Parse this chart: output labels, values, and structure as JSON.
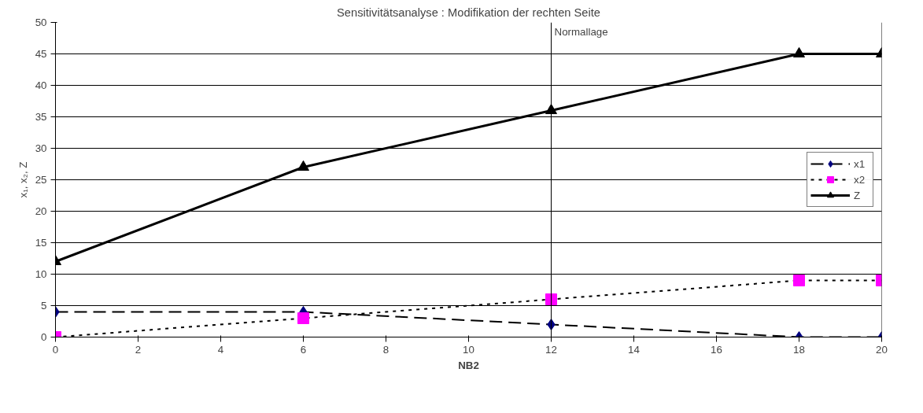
{
  "chart_data": {
    "type": "line",
    "title": "Sensitivitätsanalyse : Modifikation der rechten Seite",
    "xlabel": "NB2",
    "ylabel": "x₁, x₂, Z",
    "x": [
      0,
      6,
      12,
      18,
      20
    ],
    "series": [
      {
        "name": "x1",
        "color": "#000080",
        "marker": "diamond",
        "line_style": "dashed",
        "values": [
          4,
          4,
          2,
          0,
          0
        ]
      },
      {
        "name": "x2",
        "color": "#ff00ff",
        "marker": "square",
        "line_style": "dotted",
        "values": [
          0,
          3,
          6,
          9,
          9
        ]
      },
      {
        "name": "Z",
        "color": "#000000",
        "marker": "triangle",
        "line_style": "solid",
        "values": [
          12,
          27,
          36,
          45,
          45
        ]
      }
    ],
    "xlim": [
      0,
      20
    ],
    "xticks": [
      0,
      2,
      4,
      6,
      8,
      10,
      12,
      14,
      16,
      18,
      20
    ],
    "ylim": [
      0,
      50
    ],
    "yticks": [
      0,
      5,
      10,
      15,
      20,
      25,
      30,
      35,
      40,
      45,
      50
    ],
    "ref_lines": [
      {
        "axis": "x",
        "value": 12,
        "label": "Normallage",
        "color": "#000000"
      }
    ],
    "grid": "y",
    "legend": "right"
  }
}
